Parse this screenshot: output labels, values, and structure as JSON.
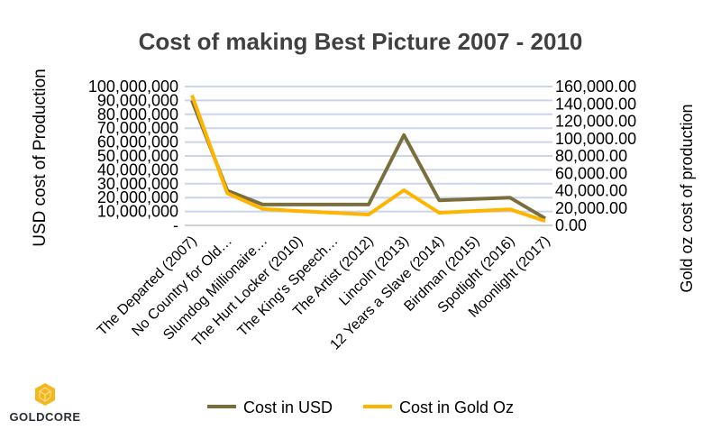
{
  "chart_data": {
    "type": "line",
    "title": "Cost of making Best Picture 2007 - 2010",
    "ylabel": "USD cost of Production",
    "y2label": "Gold oz  cost of production",
    "categories": [
      "The Departed (2007)",
      "No Country for Old…",
      "Slumdog Millionaire…",
      "The Hurt Locker (2010)",
      "The King's Speech…",
      "The Artist (2012)",
      "Lincoln (2013)",
      "12 Years a Slave (2014)",
      "Birdman (2015)",
      "Spotlight (2016)",
      "Moonlight (2017)"
    ],
    "ylim": [
      0,
      100000000
    ],
    "y2lim": [
      0,
      160000
    ],
    "yticks": [
      "-",
      "10,000,000",
      "20,000,000",
      "30,000,000",
      "40,000,000",
      "50,000,000",
      "60,000,000",
      "70,000,000",
      "80,000,000",
      "90,000,000",
      "100,000,000"
    ],
    "y2ticks": [
      "0.00",
      "20,000.00",
      "40,000.00",
      "60,000.00",
      "80,000.00",
      "100,000.00",
      "120,000.00",
      "140,000.00",
      "160,000.00"
    ],
    "grid": true,
    "legend": "bottom",
    "series": [
      {
        "name": "Cost in USD",
        "axis": "left",
        "color": "#7a6e3c",
        "values": [
          90000000,
          25000000,
          15000000,
          15000000,
          15000000,
          15000000,
          65000000,
          18000000,
          19000000,
          20000000,
          5000000
        ]
      },
      {
        "name": "Cost in Gold Oz",
        "axis": "right",
        "color": "#ffb400",
        "values": [
          150000,
          37000,
          19000,
          16500,
          14500,
          12500,
          40500,
          14500,
          16500,
          18500,
          5000
        ]
      }
    ]
  },
  "logo": {
    "text": "GoldCore",
    "color": "#f5b71e"
  }
}
